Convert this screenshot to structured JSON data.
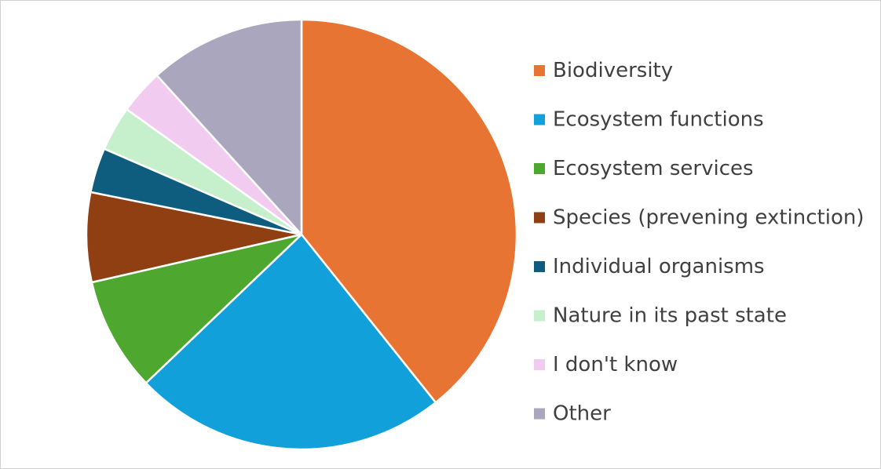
{
  "chart_data": {
    "type": "pie",
    "title": "",
    "legend_position": "right",
    "slices": [
      {
        "label": "Biodiversity",
        "value": 38.5,
        "color": "#E87434"
      },
      {
        "label": "Ecosystem functions",
        "value": 23.1,
        "color": "#11A0D9"
      },
      {
        "label": "Ecosystem services",
        "value": 8.4,
        "color": "#4EA72E"
      },
      {
        "label": "Species (prevening extinction)",
        "value": 6.6,
        "color": "#8F3F12"
      },
      {
        "label": "Individual organisms",
        "value": 3.3,
        "color": "#0E5C7E"
      },
      {
        "label": "Nature in its past state",
        "value": 3.3,
        "color": "#C5F0CB"
      },
      {
        "label": "I don't know",
        "value": 3.3,
        "color": "#F1CCF0"
      },
      {
        "label": "Other",
        "value": 11.5,
        "color": "#A9A6BD"
      }
    ]
  }
}
